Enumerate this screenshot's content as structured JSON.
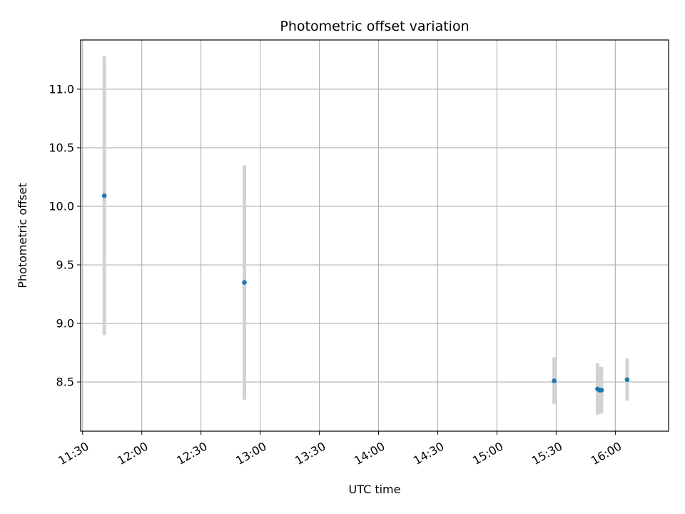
{
  "chart_data": {
    "type": "scatter",
    "title": "Photometric offset variation",
    "xlabel": "UTC time",
    "ylabel": "Photometric offset",
    "x_ticks": [
      "11:30",
      "12:00",
      "12:30",
      "13:00",
      "13:30",
      "14:00",
      "14:30",
      "15:00",
      "15:30",
      "16:00"
    ],
    "y_ticks": [
      "8.5",
      "9.0",
      "9.5",
      "10.0",
      "10.5",
      "11.0"
    ],
    "xlim": [
      "11:29",
      "16:27"
    ],
    "ylim": [
      8.08,
      11.42
    ],
    "grid": true,
    "series": [
      {
        "x": [
          "11:41",
          "12:52",
          "15:29",
          "15:51",
          "15:52",
          "15:53",
          "16:06"
        ],
        "y": [
          10.09,
          9.35,
          8.51,
          8.44,
          8.43,
          8.43,
          8.52
        ],
        "error": [
          1.19,
          1.0,
          0.2,
          0.22,
          0.2,
          0.2,
          0.18
        ]
      }
    ],
    "colors": {
      "point": "#1f77b4",
      "errorbar": "#d3d3d3",
      "grid": "#b0b0b0"
    }
  }
}
